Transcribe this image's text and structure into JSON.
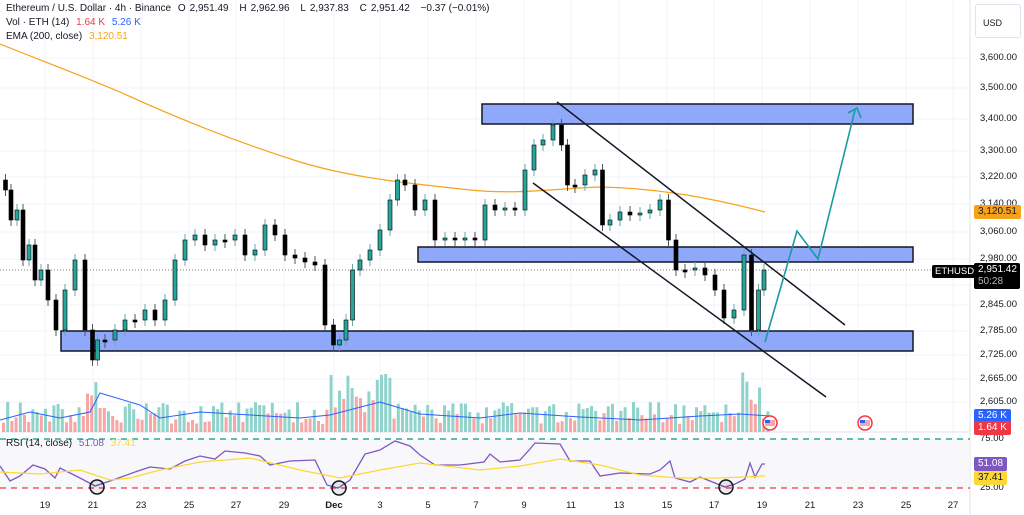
{
  "header": {
    "symbol": "Ethereum / U.S. Dollar · 4h · Binance",
    "open_label": "O",
    "open": "2,951.49",
    "high_label": "H",
    "high": "2,962.96",
    "low_label": "L",
    "low": "2,937.83",
    "close_label": "C",
    "close": "2,951.42",
    "change": "−0.37 (−0.01%)"
  },
  "volume_legend": {
    "label": "Vol · ETH (14)",
    "value1": "1.64 K",
    "value2": "5.26 K"
  },
  "ema_legend": {
    "label": "EMA (200, close)",
    "value": "3,120.51"
  },
  "rsi_legend": {
    "label": "RSI (14, close)",
    "value1": "51.08",
    "value2": "37.41"
  },
  "currency": "USD",
  "ticker_tag": "ETHUSD",
  "last_price": "2,951.42",
  "countdown": "50:28",
  "ema_tag": "3,120.51",
  "vol_tag_blue": "5.26 K",
  "vol_tag_red": "1.64 K",
  "rsi_tag_purple": "51.08",
  "rsi_tag_yellow": "37.41",
  "colors": {
    "up": "#26a69a",
    "down": "#000000",
    "ema": "#f7a21b",
    "zone_fill": "#90a8fa",
    "zone_stroke": "#131722",
    "vol_up": "#8fd3cb",
    "vol_down": "#f7a5a5",
    "vol_ma": "#2962ff",
    "rsi": "#7e57c2",
    "rsi_ma": "#fdd835",
    "projection": "#1a9aa0",
    "rsi_upper": "#089981",
    "rsi_lower": "#f23645"
  },
  "chart_data": {
    "type": "candlestick",
    "title": "Ethereum / U.S. Dollar · 4h · Binance",
    "xlabel": "",
    "ylabel": "USD",
    "y_ticks": [
      "3,600.00",
      "3,500.00",
      "3,400.00",
      "3,300.00",
      "3,220.00",
      "3,140.00",
      "3,060.00",
      "2,980.00",
      "2,905.00",
      "2,845.00",
      "2,785.00",
      "2,725.00",
      "2,665.00",
      "2,605.00"
    ],
    "x_ticks": [
      "19",
      "21",
      "23",
      "25",
      "27",
      "29",
      "Dec",
      "3",
      "5",
      "7",
      "9",
      "11",
      "13",
      "15",
      "17",
      "19",
      "21",
      "23",
      "25",
      "27"
    ],
    "rsi_levels": [
      "75.00",
      "25.00"
    ],
    "zones": [
      {
        "name": "resistance-zone-top",
        "low": 3395,
        "high": 3445
      },
      {
        "name": "mid-zone",
        "low": 2965,
        "high": 3000
      },
      {
        "name": "support-zone",
        "low": 2735,
        "high": 2785
      }
    ],
    "ema200_last": 3120.51,
    "last_close": 2951.42,
    "approx_price_path": [
      {
        "date": "Nov 18",
        "price": 3170
      },
      {
        "date": "Nov 19",
        "price": 3050
      },
      {
        "date": "Nov 20",
        "price": 2940
      },
      {
        "date": "Nov 21",
        "price": 2720
      },
      {
        "date": "Nov 22",
        "price": 2780
      },
      {
        "date": "Nov 24",
        "price": 3080
      },
      {
        "date": "Nov 26",
        "price": 3080
      },
      {
        "date": "Nov 28",
        "price": 3060
      },
      {
        "date": "Nov 30",
        "price": 2760
      },
      {
        "date": "Dec 2",
        "price": 2990
      },
      {
        "date": "Dec 4",
        "price": 3200
      },
      {
        "date": "Dec 6",
        "price": 3030
      },
      {
        "date": "Dec 8",
        "price": 3130
      },
      {
        "date": "Dec 10",
        "price": 3400
      },
      {
        "date": "Dec 11",
        "price": 3180
      },
      {
        "date": "Dec 13",
        "price": 3080
      },
      {
        "date": "Dec 15",
        "price": 3180
      },
      {
        "date": "Dec 16",
        "price": 2930
      },
      {
        "date": "Dec 17",
        "price": 2790
      },
      {
        "date": "Dec 18",
        "price": 2980
      },
      {
        "date": "Dec 19",
        "price": 2951
      }
    ],
    "projection_path": [
      {
        "date": "Dec 19",
        "price": 2760
      },
      {
        "date": "Dec 20",
        "price": 3060
      },
      {
        "date": "Dec 21",
        "price": 2980
      },
      {
        "date": "Dec 22",
        "price": 3430
      }
    ],
    "grid": true
  }
}
